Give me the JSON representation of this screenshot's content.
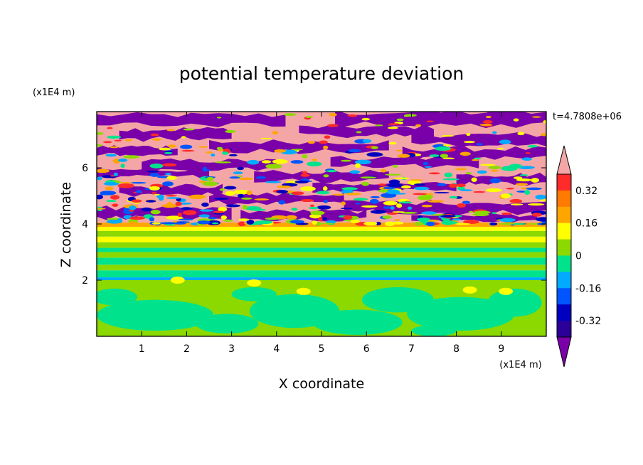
{
  "chart_data": {
    "type": "heatmap",
    "title": "potential temperature deviation",
    "xlabel": "X coordinate",
    "ylabel": "Z coordinate",
    "x_units": "(x1E4 m)",
    "y_units": "(x1E4 m)",
    "time_label": "t=4.7808e+06",
    "xlim": [
      0,
      10
    ],
    "ylim": [
      0,
      8
    ],
    "x_ticks": [
      1,
      2,
      3,
      4,
      5,
      6,
      7,
      8,
      9
    ],
    "y_ticks": [
      2,
      4,
      6
    ],
    "colorbar": {
      "levels": [
        -0.48,
        -0.4,
        -0.32,
        -0.24,
        -0.16,
        -0.08,
        0,
        0.08,
        0.16,
        0.24,
        0.32,
        0.4,
        0.48
      ],
      "tick_labels": [
        "0.32",
        "0.16",
        "0",
        "-0.16",
        "-0.32"
      ],
      "tick_values": [
        0.32,
        0.16,
        0,
        -0.16,
        -0.32
      ],
      "colors_top_to_bottom": [
        "#f4a6a6",
        "#ff2a2a",
        "#ff7a00",
        "#ffa500",
        "#ffff00",
        "#8cd900",
        "#00e38c",
        "#00aaff",
        "#0055ff",
        "#0000c0",
        "#2a0099",
        "#7a00aa"
      ]
    },
    "structure": {
      "lower_layer_z": [
        0,
        2
      ],
      "lower_layer_description_colors": [
        "#00e38c",
        "#8cd900"
      ],
      "stratified_band_z": [
        2,
        4
      ],
      "turbulent_band_z": [
        4,
        5.2
      ],
      "upper_layer_z": [
        5.2,
        8
      ],
      "upper_layer_colors": [
        "#f4a6a6",
        "#7a00aa"
      ]
    }
  }
}
